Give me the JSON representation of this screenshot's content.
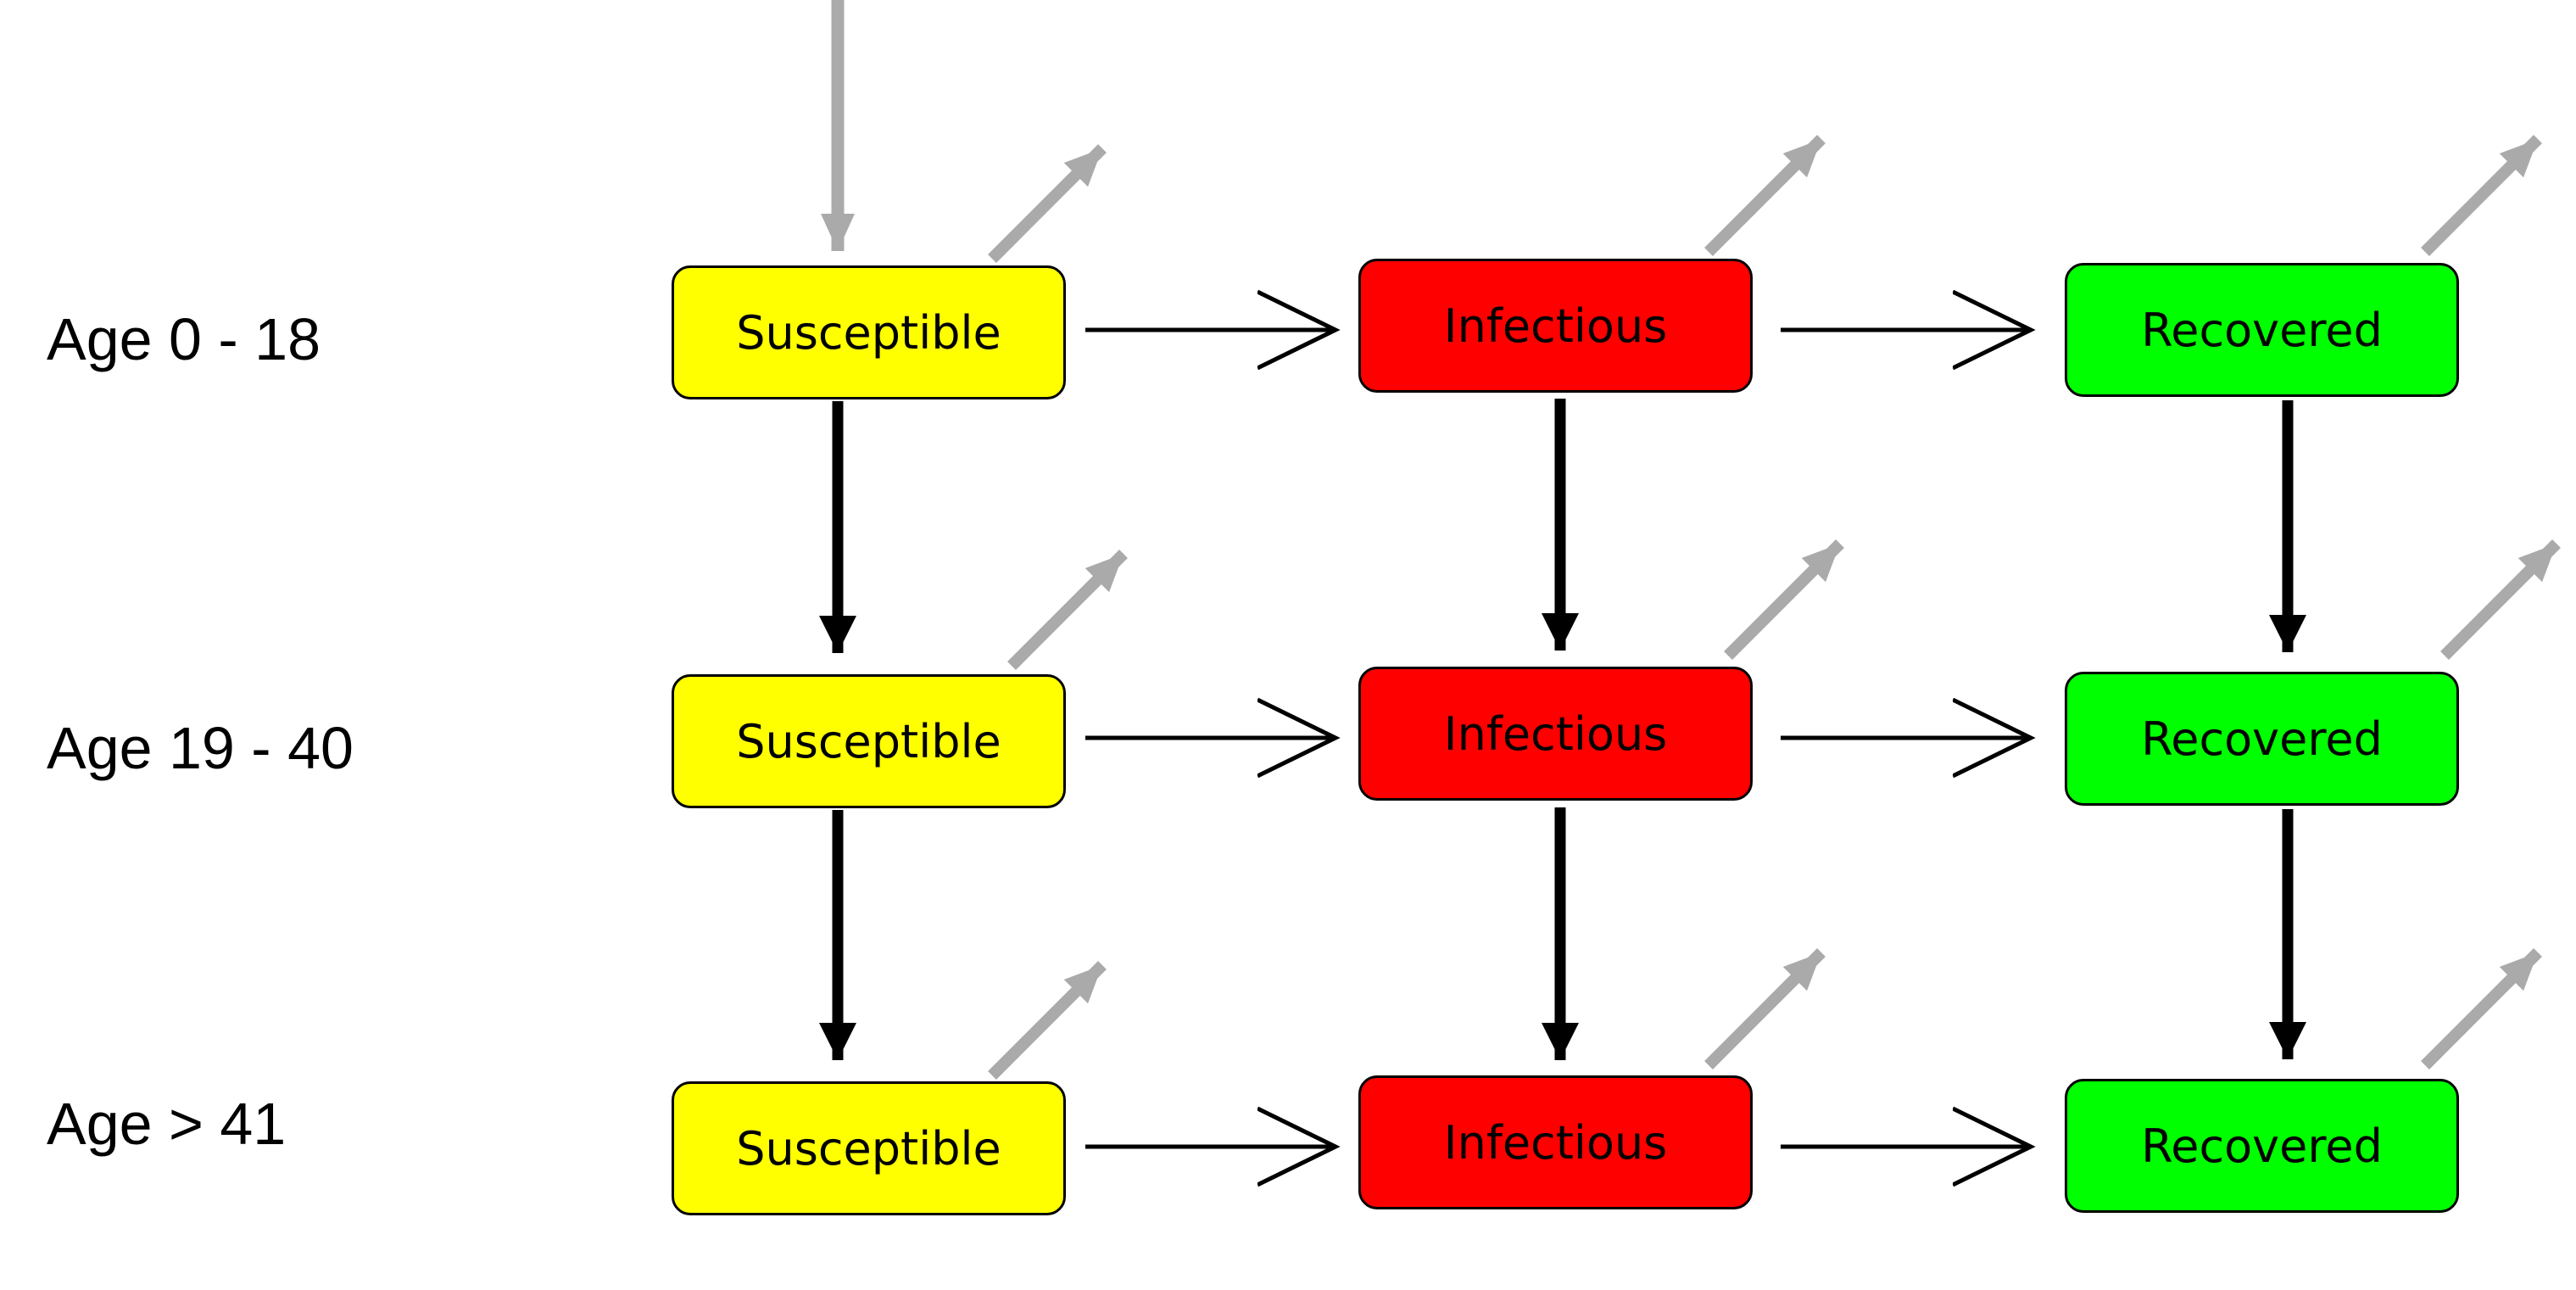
{
  "rows": [
    {
      "label": "Age 0 - 18",
      "susceptible": "Susceptible",
      "infectious": "Infectious",
      "recovered": "Recovered"
    },
    {
      "label": "Age 19 - 40",
      "susceptible": "Susceptible",
      "infectious": "Infectious",
      "recovered": "Recovered"
    },
    {
      "label": "Age > 41",
      "susceptible": "Susceptible",
      "infectious": "Infectious",
      "recovered": "Recovered"
    }
  ],
  "colors": {
    "susceptible": "#ffff00",
    "infectious": "#ff0000",
    "recovered": "#00ff00",
    "flow_arrow": "#000000",
    "birth_death_arrow": "#aaaaaa"
  }
}
